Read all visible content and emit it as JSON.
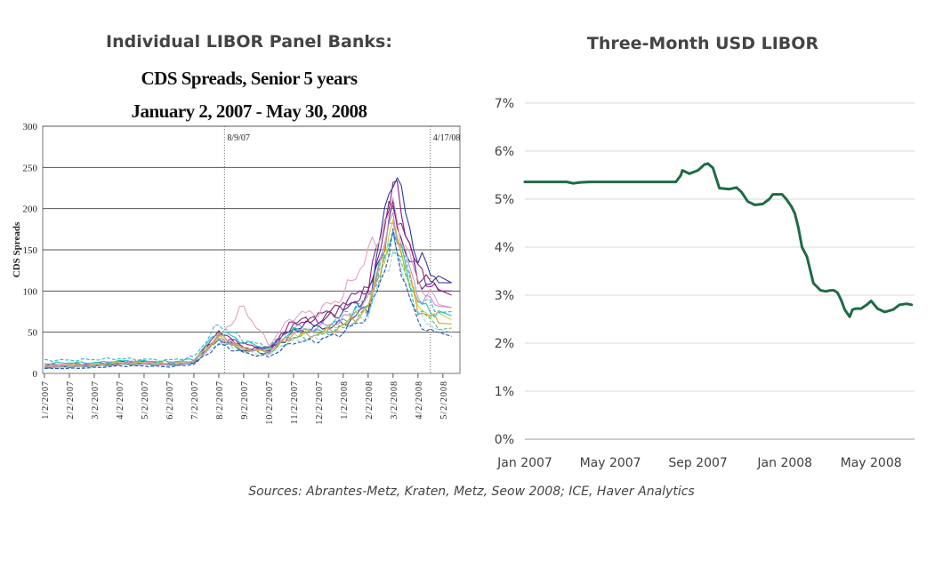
{
  "header": {
    "left_title": "Individual LIBOR Panel Banks:",
    "right_title": "Three-Month USD LIBOR"
  },
  "footer": {
    "sources": "Sources: Abrantes-Metz, Kraten, Metz, Seow 2008; ICE, Haver Analytics"
  },
  "chart_data": [
    {
      "type": "line",
      "title": "CDS Spreads, Senior 5 years",
      "subtitle": "January 2, 2007 - May 30, 2008",
      "ylabel": "CDS Spreads",
      "xlabel": "",
      "ylim": [
        0,
        300
      ],
      "yticks": [
        0,
        50,
        100,
        150,
        200,
        250,
        300
      ],
      "x_tick_labels": [
        "1/2/2007",
        "2/2/2007",
        "3/2/2007",
        "4/2/2007",
        "5/2/2007",
        "6/2/2007",
        "7/2/2007",
        "8/2/2007",
        "9/2/2007",
        "10/2/2007",
        "11/2/2007",
        "12/2/2007",
        "1/2/2008",
        "2/2/2008",
        "3/2/2008",
        "4/2/2008",
        "5/2/2008"
      ],
      "grid": true,
      "annotations": [
        {
          "label": "8/9/07",
          "x": 7.23
        },
        {
          "label": "4/17/08",
          "x": 15.5
        }
      ],
      "series": [
        {
          "color": "#4a2a8a",
          "values": [
            8,
            9,
            10,
            12,
            13,
            12,
            13,
            45,
            30,
            30,
            55,
            62,
            75,
            95,
            195,
            110,
            110
          ]
        },
        {
          "color": "#7a2a7a",
          "values": [
            9,
            10,
            11,
            13,
            13,
            11,
            14,
            50,
            32,
            28,
            60,
            70,
            80,
            100,
            210,
            120,
            100
          ]
        },
        {
          "color": "#2a3aa0",
          "values": [
            7,
            8,
            9,
            11,
            11,
            10,
            12,
            42,
            28,
            25,
            50,
            55,
            60,
            80,
            250,
            140,
            110
          ]
        },
        {
          "color": "#8a1a8a",
          "values": [
            10,
            11,
            12,
            14,
            14,
            12,
            15,
            48,
            35,
            30,
            62,
            65,
            85,
            105,
            230,
            125,
            95
          ]
        },
        {
          "color": "#e8a0c0",
          "values": [
            10,
            11,
            12,
            14,
            14,
            13,
            15,
            45,
            80,
            35,
            70,
            75,
            95,
            145,
            200,
            110,
            80
          ]
        },
        {
          "color": "#3ab0d0",
          "values": [
            16,
            16,
            17,
            18,
            17,
            16,
            20,
            60,
            40,
            32,
            55,
            55,
            70,
            90,
            170,
            90,
            75
          ]
        },
        {
          "color": "#20c0c0",
          "values": [
            12,
            13,
            13,
            15,
            15,
            14,
            17,
            52,
            38,
            30,
            52,
            50,
            65,
            85,
            175,
            85,
            70
          ]
        },
        {
          "color": "#d0d040",
          "values": [
            9,
            10,
            11,
            13,
            13,
            12,
            15,
            45,
            30,
            27,
            48,
            50,
            60,
            82,
            180,
            80,
            65
          ]
        },
        {
          "color": "#e0a020",
          "values": [
            8,
            9,
            10,
            12,
            12,
            11,
            14,
            44,
            30,
            26,
            45,
            48,
            58,
            78,
            185,
            78,
            60
          ]
        },
        {
          "color": "#40c080",
          "values": [
            7,
            8,
            9,
            11,
            11,
            10,
            13,
            40,
            28,
            24,
            42,
            45,
            55,
            75,
            160,
            75,
            55
          ]
        },
        {
          "color": "#a0d0e0",
          "values": [
            6,
            7,
            8,
            10,
            10,
            9,
            12,
            38,
            26,
            22,
            40,
            42,
            52,
            72,
            150,
            70,
            50
          ]
        },
        {
          "color": "#2a50b0",
          "values": [
            6,
            6,
            7,
            9,
            9,
            8,
            11,
            35,
            25,
            20,
            38,
            40,
            50,
            70,
            160,
            60,
            45
          ]
        },
        {
          "color": "#c090d0",
          "values": [
            8,
            9,
            10,
            12,
            12,
            11,
            14,
            43,
            30,
            26,
            50,
            55,
            65,
            88,
            190,
            95,
            80
          ]
        }
      ]
    },
    {
      "type": "line",
      "title": "Three-Month USD LIBOR",
      "ylim": [
        0,
        7
      ],
      "yticks": [
        "0%",
        "1%",
        "2%",
        "3%",
        "4%",
        "5%",
        "6%",
        "7%"
      ],
      "x_tick_labels": [
        "Jan 2007",
        "May 2007",
        "Sep 2007",
        "Jan 2008",
        "May 2008"
      ],
      "grid": true,
      "colors": {
        "line": "#1e6b46"
      },
      "series": [
        {
          "x": [
            "2007-01-01",
            "2007-03-01",
            "2007-03-10",
            "2007-03-20",
            "2007-04-01",
            "2007-06-01",
            "2007-07-20",
            "2007-08-01",
            "2007-08-08",
            "2007-08-10",
            "2007-08-20",
            "2007-09-01",
            "2007-09-10",
            "2007-09-15",
            "2007-09-22",
            "2007-10-01",
            "2007-10-15",
            "2007-10-25",
            "2007-11-01",
            "2007-11-10",
            "2007-11-20",
            "2007-12-01",
            "2007-12-10",
            "2007-12-15",
            "2007-12-28",
            "2008-01-03",
            "2008-01-10",
            "2008-01-15",
            "2008-01-20",
            "2008-01-25",
            "2008-02-01",
            "2008-02-10",
            "2008-02-20",
            "2008-02-28",
            "2008-03-05",
            "2008-03-10",
            "2008-03-15",
            "2008-03-20",
            "2008-03-25",
            "2008-04-01",
            "2008-04-05",
            "2008-04-10",
            "2008-04-17",
            "2008-04-25",
            "2008-05-01",
            "2008-05-10",
            "2008-05-20",
            "2008-06-01",
            "2008-06-10",
            "2008-06-20",
            "2008-06-27"
          ],
          "values": [
            5.36,
            5.36,
            5.33,
            5.35,
            5.36,
            5.36,
            5.36,
            5.36,
            5.5,
            5.6,
            5.53,
            5.6,
            5.72,
            5.74,
            5.65,
            5.23,
            5.21,
            5.24,
            5.15,
            4.95,
            4.88,
            4.9,
            5.0,
            5.1,
            5.1,
            5.0,
            4.85,
            4.7,
            4.4,
            4.0,
            3.8,
            3.25,
            3.1,
            3.08,
            3.1,
            3.1,
            3.05,
            2.9,
            2.7,
            2.55,
            2.7,
            2.72,
            2.72,
            2.8,
            2.88,
            2.72,
            2.65,
            2.7,
            2.8,
            2.82,
            2.8
          ]
        }
      ]
    }
  ]
}
